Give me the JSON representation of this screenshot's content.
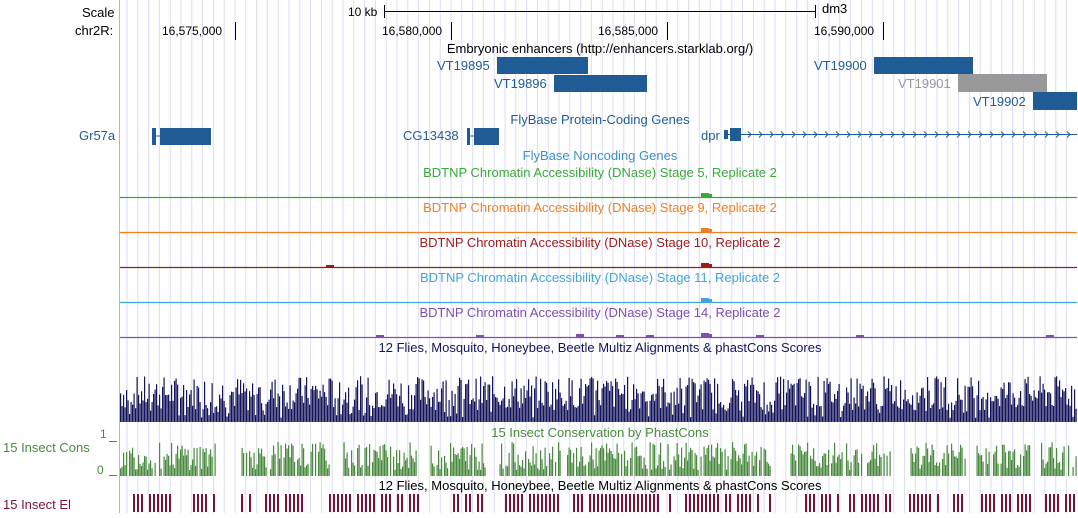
{
  "scale": {
    "label": "Scale",
    "bar_label": "10 kb",
    "assembly": "dm3"
  },
  "chrom": {
    "label": "chr2R:",
    "ticks": [
      "16,575,000",
      "16,580,000",
      "16,585,000",
      "16,590,000"
    ]
  },
  "tracks": {
    "enhancers": {
      "title": "Embryonic enhancers (http://enhancers.starklab.org/)",
      "items": [
        {
          "name": "VT19895",
          "color": "#1f5c96"
        },
        {
          "name": "VT19896",
          "color": "#1f5c96"
        },
        {
          "name": "VT19900",
          "color": "#1f5c96"
        },
        {
          "name": "VT19901",
          "color": "#999999"
        },
        {
          "name": "VT19902",
          "color": "#1f5c96"
        }
      ]
    },
    "protein_coding": {
      "title": "FlyBase Protein-Coding Genes",
      "genes": [
        "Gr57a",
        "CG13438",
        "dpr"
      ],
      "color": "#1f5c96"
    },
    "noncoding": {
      "title": "FlyBase Noncoding Genes",
      "color": "#3a8fd0"
    },
    "dnase": [
      {
        "title": "BDTNP Chromatin Accessibility (DNase) Stage 5, Replicate 2",
        "color": "#3aa83a"
      },
      {
        "title": "BDTNP Chromatin Accessibility (DNase) Stage 9, Replicate 2",
        "color": "#f07f22"
      },
      {
        "title": "BDTNP Chromatin Accessibility (DNase) Stage 10, Replicate 2",
        "color": "#9b1b1b"
      },
      {
        "title": "BDTNP Chromatin Accessibility (DNase) Stage 11, Replicate 2",
        "color": "#42a5d8"
      },
      {
        "title": "BDTNP Chromatin Accessibility (DNase) Stage 14, Replicate 2",
        "color": "#7d4fb0"
      }
    ],
    "multiz": {
      "title": "12 Flies, Mosquito, Honeybee, Beetle Multiz Alignments & phastCons Scores",
      "color": "#14145a"
    },
    "phastcons": {
      "side_label": "15 Insect Cons",
      "title": "15 Insect Conservation by PhastCons",
      "y_max": "1",
      "y_min": "0",
      "color": "#4a8a3e"
    },
    "elements": {
      "side_label": "15 Insect El",
      "title": "12 Flies, Mosquito, Honeybee, Beetle Multiz Alignments & phastCons Scores",
      "color": "#7a1436"
    }
  }
}
